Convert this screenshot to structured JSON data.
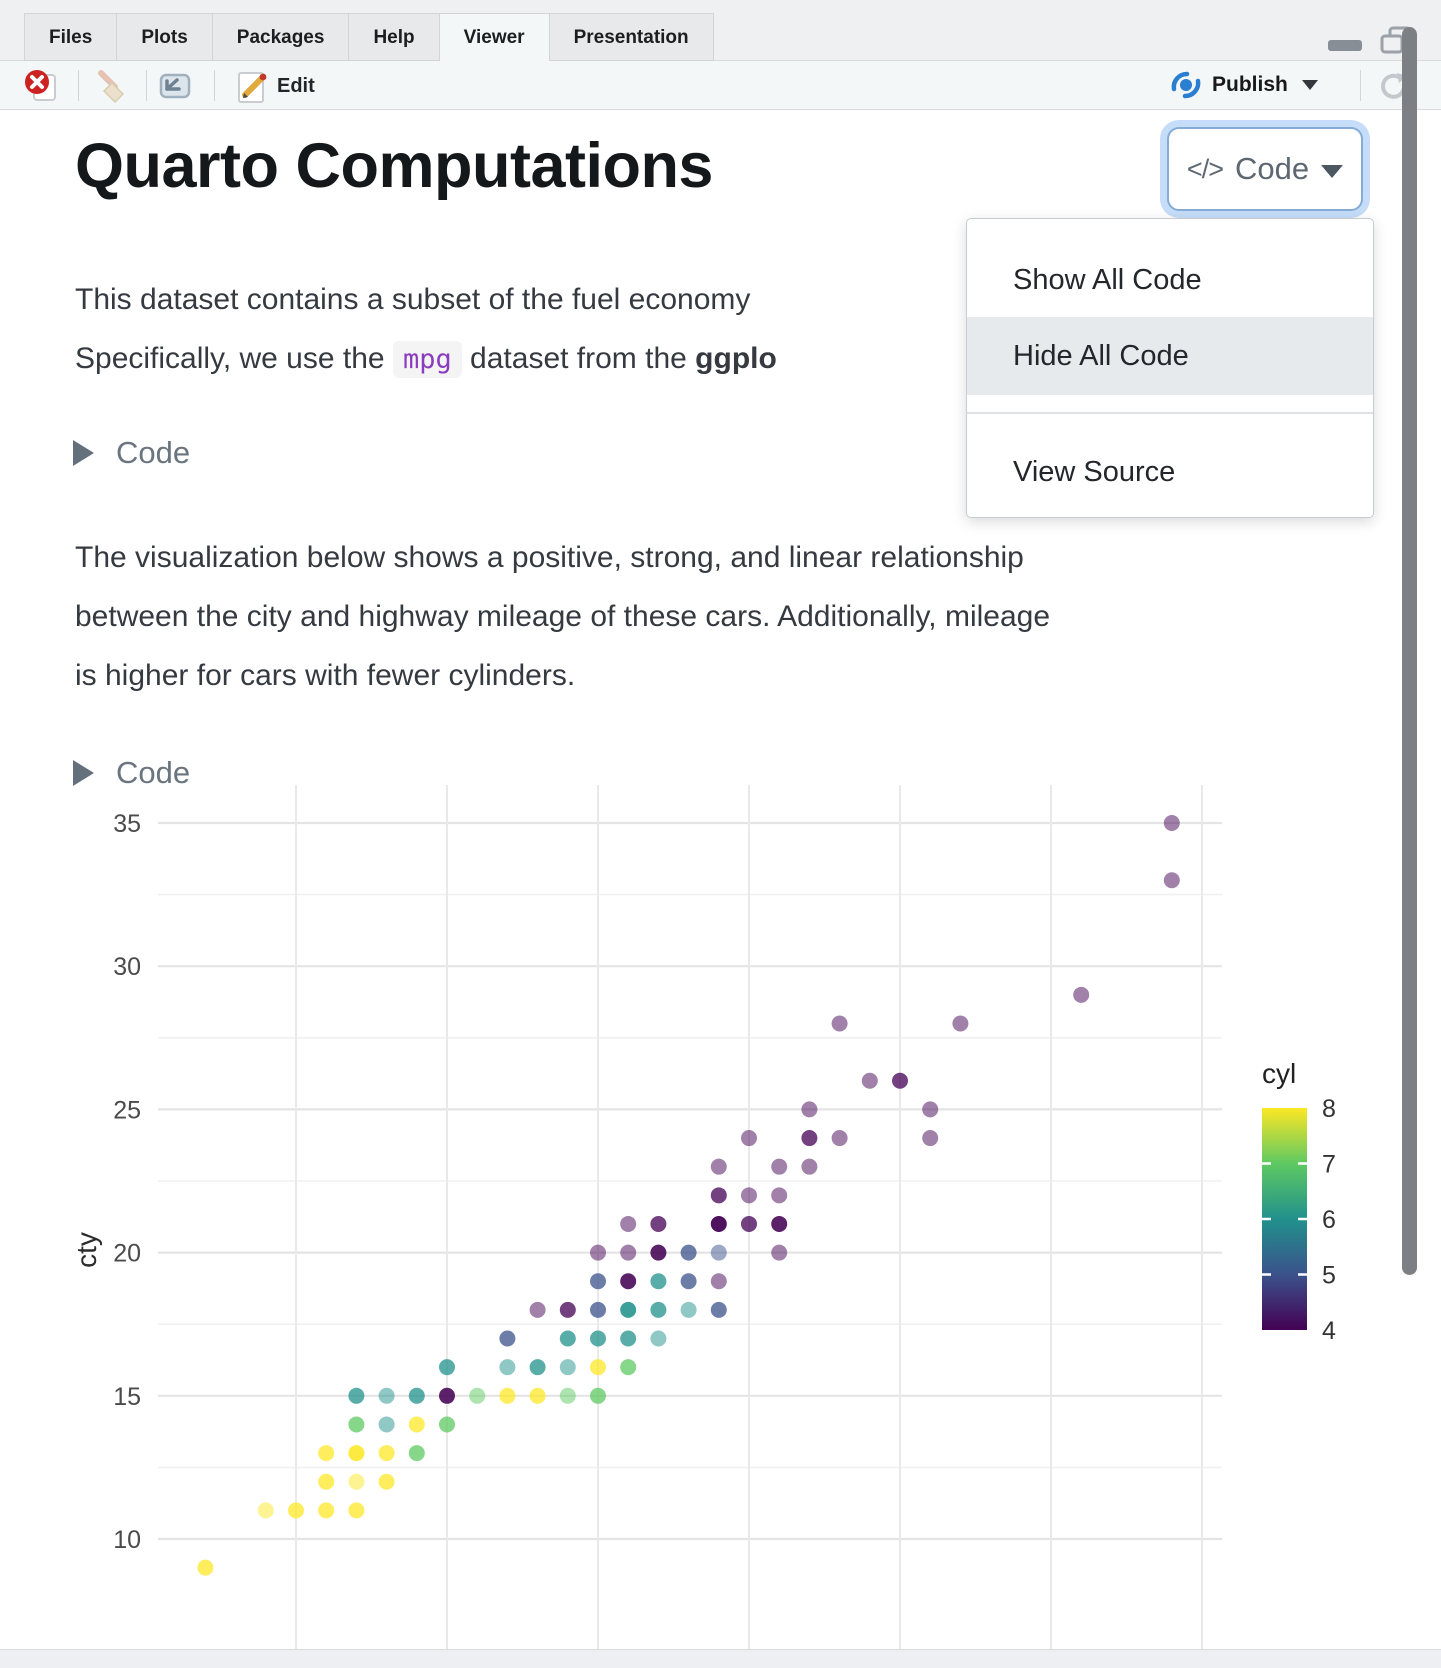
{
  "win": {
    "tabs": [
      "Files",
      "Plots",
      "Packages",
      "Help",
      "Viewer",
      "Presentation"
    ],
    "active_tab": "Viewer",
    "toolbar": {
      "edit": "Edit",
      "publish": "Publish"
    }
  },
  "doc": {
    "title": "Quarto Computations",
    "code_button": {
      "glyph": "</>",
      "label": "Code"
    },
    "code_menu": {
      "items": [
        "Show All Code",
        "Hide All Code",
        "View Source"
      ],
      "highlighted_index": 1
    },
    "intro": {
      "line1": "This dataset contains a subset of the fuel economy",
      "line2_pre": "Specifically, we use the ",
      "line2_code": "mpg",
      "line2_mid": " dataset from the ",
      "line2_bold": "ggplo"
    },
    "fold1_label": "Code",
    "fold2_label": "Code",
    "body_lines": [
      "The visualization below shows a positive, strong, and linear relationship",
      "between the city and highway mileage of these cars. Additionally, mileage",
      "is higher for cars with fewer cylinders."
    ]
  },
  "colors": {
    "focus_ring": "#c5ddf8",
    "menu_highlight": "#e7eaed",
    "publish_blue": "#2b7fd0",
    "code_purple": "#8a3bbe"
  },
  "chart_data": {
    "type": "scatter",
    "title": "",
    "xlabel": "",
    "x_axis_visible": false,
    "ylabel": "cty",
    "y_ticks": [
      10,
      15,
      20,
      25,
      30,
      35
    ],
    "y_minor": [
      12.5,
      17.5,
      22.5,
      27.5,
      32.5
    ],
    "x_gridlines_hwy": [
      15,
      20,
      25,
      30,
      35,
      40,
      45
    ],
    "ylim_visible": [
      8,
      36.5
    ],
    "xlim_visible": [
      10.4,
      45.7
    ],
    "grid": true,
    "legend": {
      "position": "right",
      "title": "cyl",
      "min": 4,
      "max": 8,
      "tick_labels": [
        8,
        7,
        6,
        5,
        4
      ],
      "colors": {
        "4": "#440154",
        "5": "#3b528b",
        "6": "#21918c",
        "7": "#5ec962",
        "8": "#fde725"
      },
      "gradient_top_to_bottom": [
        [
          "0%",
          "#fde725"
        ],
        [
          "25%",
          "#5ec962"
        ],
        [
          "50%",
          "#21918c"
        ],
        [
          "75%",
          "#3b528b"
        ],
        [
          "100%",
          "#440154"
        ]
      ]
    },
    "point_style": {
      "radius_px": 8,
      "alpha_single": 0.5
    },
    "point_fields": [
      "hwy",
      "cty",
      "cyl",
      "overplot_count"
    ],
    "points": [
      [
        44,
        35,
        4,
        1
      ],
      [
        44,
        33,
        4,
        1
      ],
      [
        41,
        29,
        4,
        1
      ],
      [
        37,
        28,
        4,
        1
      ],
      [
        33,
        28,
        4,
        1
      ],
      [
        35,
        26,
        4,
        2
      ],
      [
        34,
        26,
        4,
        1
      ],
      [
        36,
        25,
        4,
        1
      ],
      [
        32,
        25,
        4,
        1
      ],
      [
        36,
        24,
        4,
        1
      ],
      [
        33,
        24,
        4,
        1
      ],
      [
        32,
        24,
        4,
        2
      ],
      [
        30,
        24,
        4,
        1
      ],
      [
        32,
        23,
        4,
        1
      ],
      [
        31,
        23,
        4,
        1
      ],
      [
        29,
        23,
        4,
        1
      ],
      [
        31,
        22,
        4,
        1
      ],
      [
        30,
        22,
        4,
        1
      ],
      [
        29,
        22,
        4,
        2
      ],
      [
        31,
        21,
        4,
        3
      ],
      [
        30,
        21,
        4,
        2
      ],
      [
        29,
        21,
        4,
        4
      ],
      [
        27,
        21,
        4,
        2
      ],
      [
        26,
        21,
        4,
        1
      ],
      [
        31,
        20,
        4,
        1
      ],
      [
        29,
        20,
        5,
        1
      ],
      [
        28,
        20,
        5,
        2
      ],
      [
        27,
        20,
        4,
        3
      ],
      [
        26,
        20,
        4,
        1
      ],
      [
        25,
        20,
        4,
        1
      ],
      [
        29,
        19,
        4,
        1
      ],
      [
        28,
        19,
        5,
        2
      ],
      [
        27,
        19,
        6,
        2
      ],
      [
        26,
        19,
        4,
        3
      ],
      [
        25,
        19,
        5,
        2
      ],
      [
        29,
        18,
        5,
        2
      ],
      [
        28,
        18,
        6,
        1
      ],
      [
        27,
        18,
        6,
        2
      ],
      [
        26,
        18,
        6,
        3
      ],
      [
        25,
        18,
        5,
        2
      ],
      [
        24,
        18,
        4,
        2
      ],
      [
        23,
        18,
        4,
        1
      ],
      [
        27,
        17,
        6,
        1
      ],
      [
        26,
        17,
        6,
        2
      ],
      [
        25,
        17,
        6,
        2
      ],
      [
        24,
        17,
        6,
        2
      ],
      [
        22,
        17,
        5,
        2
      ],
      [
        26,
        16,
        7,
        2
      ],
      [
        25,
        16,
        8,
        2
      ],
      [
        24,
        16,
        6,
        1
      ],
      [
        23,
        16,
        6,
        2
      ],
      [
        22,
        16,
        6,
        1
      ],
      [
        20,
        16,
        6,
        2
      ],
      [
        25,
        15,
        7,
        2
      ],
      [
        24,
        15,
        7,
        1
      ],
      [
        23,
        15,
        8,
        2
      ],
      [
        22,
        15,
        8,
        2
      ],
      [
        21,
        15,
        7,
        1
      ],
      [
        20,
        15,
        4,
        3
      ],
      [
        19,
        15,
        6,
        2
      ],
      [
        18,
        15,
        6,
        1
      ],
      [
        17,
        15,
        6,
        2
      ],
      [
        20,
        14,
        7,
        2
      ],
      [
        19,
        14,
        8,
        2
      ],
      [
        18,
        14,
        6,
        1
      ],
      [
        17,
        14,
        7,
        2
      ],
      [
        19,
        13,
        7,
        2
      ],
      [
        18,
        13,
        8,
        2
      ],
      [
        17,
        13,
        8,
        3
      ],
      [
        16,
        13,
        8,
        2
      ],
      [
        18,
        12,
        8,
        2
      ],
      [
        17,
        12,
        8,
        1
      ],
      [
        16,
        12,
        8,
        2
      ],
      [
        17,
        11,
        8,
        2
      ],
      [
        16,
        11,
        8,
        2
      ],
      [
        15,
        11,
        8,
        2
      ],
      [
        14,
        11,
        8,
        1
      ],
      [
        12,
        9,
        8,
        2
      ]
    ]
  }
}
